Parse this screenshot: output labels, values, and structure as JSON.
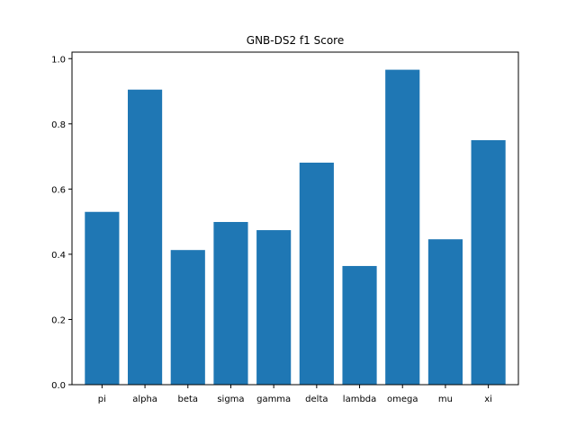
{
  "chart_data": {
    "type": "bar",
    "title": "GNB-DS2 f1 Score",
    "xlabel": "",
    "ylabel": "",
    "categories": [
      "pi",
      "alpha",
      "beta",
      "sigma",
      "gamma",
      "delta",
      "lambda",
      "omega",
      "mu",
      "xi"
    ],
    "values": [
      0.53,
      0.905,
      0.413,
      0.499,
      0.474,
      0.681,
      0.364,
      0.966,
      0.446,
      0.75
    ],
    "ylim": [
      0,
      1.02
    ],
    "yticks": [
      0.0,
      0.2,
      0.4,
      0.6,
      0.8,
      1.0
    ],
    "ytick_labels": [
      "0.0",
      "0.2",
      "0.4",
      "0.6",
      "0.8",
      "1.0"
    ],
    "grid": false,
    "bar_color": "#1f77b4"
  }
}
